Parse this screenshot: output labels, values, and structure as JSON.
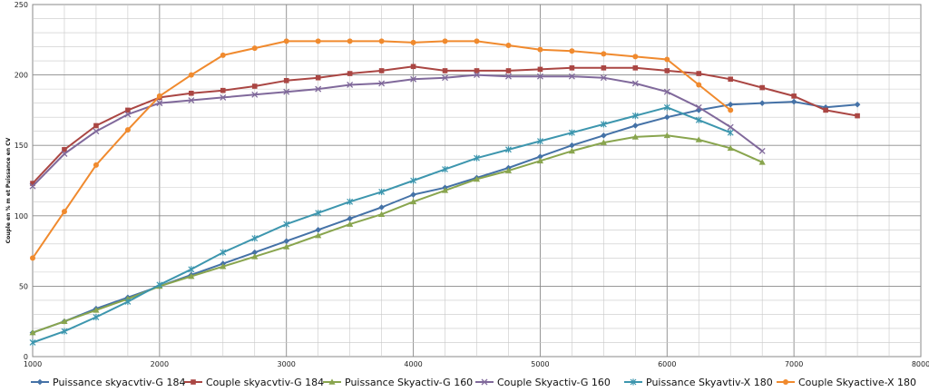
{
  "chart_data": {
    "type": "line",
    "title": "",
    "xlabel": "",
    "ylabel": "Couple en % m et Puissance en CV",
    "xlim": [
      1000,
      8000
    ],
    "ylim": [
      0,
      250
    ],
    "xticks": [
      1000,
      2000,
      3000,
      4000,
      5000,
      6000,
      7000,
      8000
    ],
    "yticks": [
      0,
      50,
      100,
      150,
      200,
      250
    ],
    "grid": true,
    "legend": "bottom",
    "series": [
      {
        "name": "Puissance skyacvtiv-G 184",
        "color": "#4572a7",
        "marker": "diamond",
        "x": [
          1000,
          1250,
          1500,
          1750,
          2000,
          2250,
          2500,
          2750,
          3000,
          3250,
          3500,
          3750,
          4000,
          4250,
          4500,
          4750,
          5000,
          5250,
          5500,
          5750,
          6000,
          6250,
          6500,
          6750,
          7000,
          7250,
          7500
        ],
        "y": [
          17,
          25,
          34,
          42,
          50,
          58,
          66,
          74,
          82,
          90,
          98,
          106,
          115,
          120,
          127,
          134,
          142,
          150,
          157,
          164,
          170,
          175,
          179,
          180,
          181,
          177,
          179
        ]
      },
      {
        "name": "Couple skyacvtiv-G 184",
        "color": "#aa4643",
        "marker": "square",
        "x": [
          1000,
          1250,
          1500,
          1750,
          2000,
          2250,
          2500,
          2750,
          3000,
          3250,
          3500,
          3750,
          4000,
          4250,
          4500,
          4750,
          5000,
          5250,
          5500,
          5750,
          6000,
          6250,
          6500,
          6750,
          7000,
          7250,
          7500
        ],
        "y": [
          123,
          147,
          164,
          175,
          184,
          187,
          189,
          192,
          196,
          198,
          201,
          203,
          206,
          203,
          203,
          203,
          204,
          205,
          205,
          205,
          203,
          201,
          197,
          191,
          185,
          175,
          171
        ]
      },
      {
        "name": "Puissance Skyactiv-G 160",
        "color": "#89a54e",
        "marker": "triangle",
        "x": [
          1000,
          1250,
          1500,
          1750,
          2000,
          2250,
          2500,
          2750,
          3000,
          3250,
          3500,
          3750,
          4000,
          4250,
          4500,
          4750,
          5000,
          5250,
          5500,
          5750,
          6000,
          6250,
          6500,
          6750
        ],
        "y": [
          17,
          25,
          33,
          41,
          50,
          57,
          64,
          71,
          78,
          86,
          94,
          101,
          110,
          118,
          126,
          132,
          139,
          146,
          152,
          156,
          157,
          154,
          148,
          138
        ]
      },
      {
        "name": "Couple Skyactiv-G 160",
        "color": "#80699b",
        "marker": "x",
        "x": [
          1000,
          1250,
          1500,
          1750,
          2000,
          2250,
          2500,
          2750,
          3000,
          3250,
          3500,
          3750,
          4000,
          4250,
          4500,
          4750,
          5000,
          5250,
          5500,
          5750,
          6000,
          6250,
          6500,
          6750
        ],
        "y": [
          121,
          144,
          160,
          172,
          180,
          182,
          184,
          186,
          188,
          190,
          193,
          194,
          197,
          198,
          200,
          199,
          199,
          199,
          198,
          194,
          188,
          177,
          163,
          146
        ]
      },
      {
        "name": "Puissance Skyavtiv-X 180",
        "color": "#3d96ae",
        "marker": "star",
        "x": [
          1000,
          1250,
          1500,
          1750,
          2000,
          2250,
          2500,
          2750,
          3000,
          3250,
          3500,
          3750,
          4000,
          4250,
          4500,
          4750,
          5000,
          5250,
          5500,
          5750,
          6000,
          6250,
          6500
        ],
        "y": [
          10,
          18,
          28,
          39,
          51,
          62,
          74,
          84,
          94,
          102,
          110,
          117,
          125,
          133,
          141,
          147,
          153,
          159,
          165,
          171,
          177,
          168,
          159
        ]
      },
      {
        "name": "Couple Skyactive-X 180",
        "color": "#f08a2e",
        "marker": "circle",
        "x": [
          1000,
          1250,
          1500,
          1750,
          2000,
          2250,
          2500,
          2750,
          3000,
          3250,
          3500,
          3750,
          4000,
          4250,
          4500,
          4750,
          5000,
          5250,
          5500,
          5750,
          6000,
          6250,
          6500
        ],
        "y": [
          70,
          103,
          136,
          161,
          185,
          200,
          214,
          219,
          224,
          224,
          224,
          224,
          223,
          224,
          224,
          221,
          218,
          217,
          215,
          213,
          211,
          193,
          175
        ]
      }
    ]
  }
}
